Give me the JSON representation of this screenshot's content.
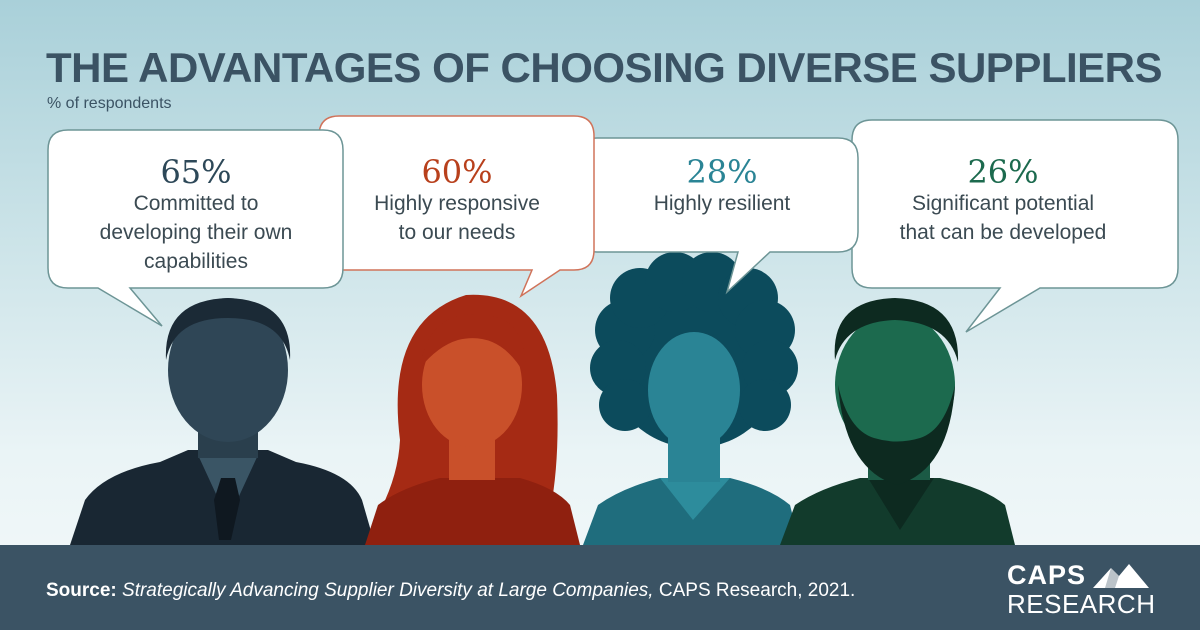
{
  "header": {
    "title": "THE ADVANTAGES OF CHOOSING DIVERSE SUPPLIERS",
    "subtitle": "% of respondents"
  },
  "footer": {
    "source_label": "Source:",
    "source_title": "Strategically Advancing Supplier Diversity at Large Companies,",
    "source_rest": " CAPS Research, 2021.",
    "logo_top": "CAPS",
    "logo_bottom": "RESEARCH"
  },
  "chart_data": {
    "type": "bar",
    "title": "THE ADVANTAGES OF CHOOSING DIVERSE SUPPLIERS",
    "subtitle": "% of respondents",
    "categories": [
      "Committed to developing their own capabilities",
      "Highly responsive to our needs",
      "Highly resilient",
      "Significant potential that can be developed"
    ],
    "values": [
      65,
      60,
      28,
      26
    ],
    "value_labels": [
      "65%",
      "60%",
      "28%",
      "26%"
    ],
    "label_lines": [
      [
        "Committed to",
        "developing their own",
        "capabilities"
      ],
      [
        "Highly responsive",
        "to our needs"
      ],
      [
        "Highly resilient"
      ],
      [
        "Significant potential",
        "that can be developed"
      ]
    ],
    "colors": [
      "#2d4858",
      "#b8401c",
      "#2a8495",
      "#1c6a4e"
    ]
  }
}
